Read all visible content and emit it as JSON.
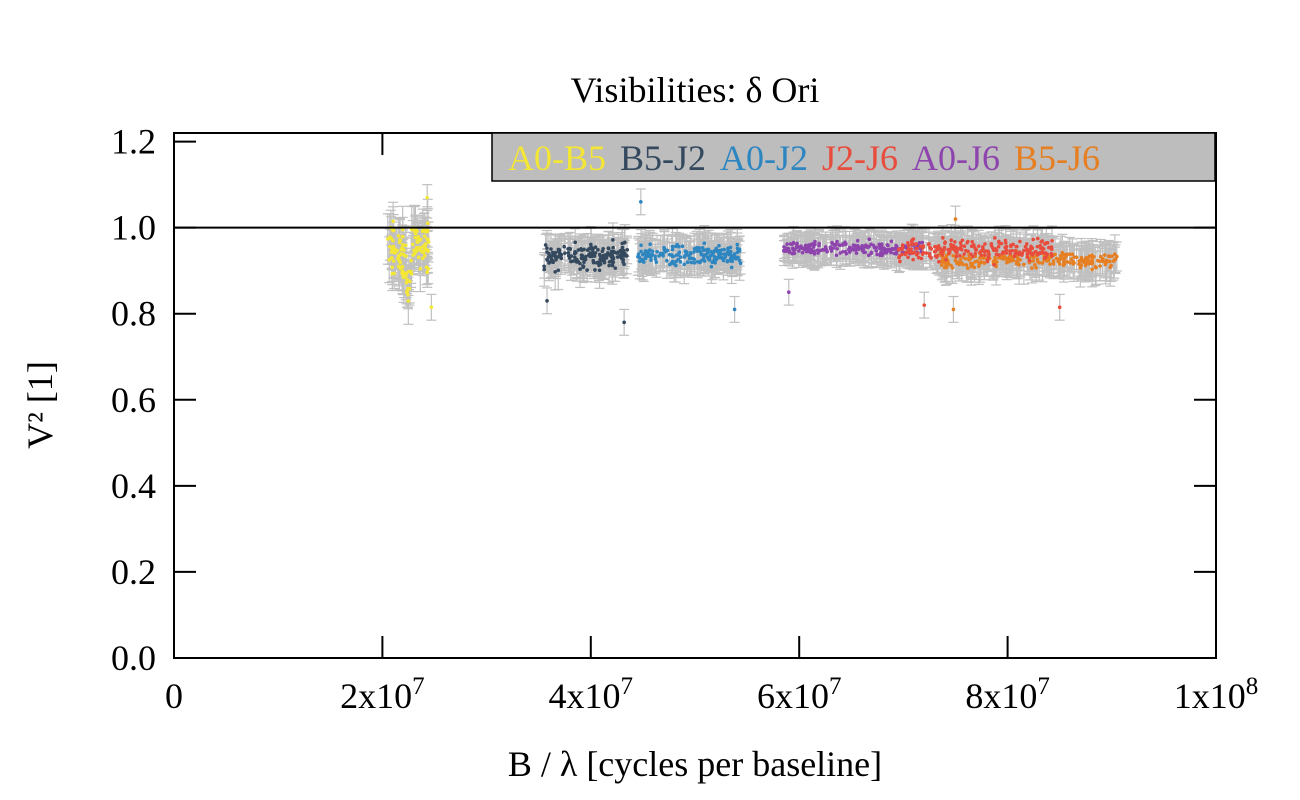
{
  "chart_data": {
    "type": "scatter",
    "title": "Visibilities: δ Ori",
    "xlabel": "B / λ [cycles per baseline]",
    "ylabel": "V² [1]",
    "xlim": [
      0,
      100000000
    ],
    "ylim": [
      0.0,
      1.22
    ],
    "reference_line_y": 1.0,
    "grid": false,
    "legend_position": "top-right",
    "x_ticks": [
      {
        "value": 0,
        "label": "0"
      },
      {
        "value": 20000000,
        "mantissa": "2x10",
        "exp": "7"
      },
      {
        "value": 40000000,
        "mantissa": "4x10",
        "exp": "7"
      },
      {
        "value": 60000000,
        "mantissa": "6x10",
        "exp": "7"
      },
      {
        "value": 80000000,
        "mantissa": "8x10",
        "exp": "7"
      },
      {
        "value": 100000000,
        "mantissa": "1x10",
        "exp": "8"
      }
    ],
    "y_ticks": [
      {
        "value": 0.0,
        "label": "0.0"
      },
      {
        "value": 0.2,
        "label": "0.2"
      },
      {
        "value": 0.4,
        "label": "0.4"
      },
      {
        "value": 0.6,
        "label": "0.6"
      },
      {
        "value": 0.8,
        "label": "0.8"
      },
      {
        "value": 1.0,
        "label": "1.0"
      },
      {
        "value": 1.2,
        "label": "1.2"
      }
    ],
    "series": [
      {
        "name": "A0-B5",
        "color": "#f4e635",
        "x_range": [
          20500000,
          24500000
        ],
        "mean": 0.94,
        "spread": 0.05,
        "err": 0.045,
        "count": 120,
        "segments": [
          [
            20500000,
            22300000,
            0.94
          ],
          [
            22300000,
            22800000,
            0.88
          ],
          [
            22800000,
            24500000,
            0.96
          ]
        ]
      },
      {
        "name": "B5-J2",
        "color": "#34495e",
        "x_range": [
          35500000,
          43500000
        ],
        "mean": 0.935,
        "spread": 0.025,
        "err": 0.035,
        "count": 170,
        "segments": [
          [
            35500000,
            43500000,
            0.935
          ]
        ]
      },
      {
        "name": "A0-J2",
        "color": "#2e86c1",
        "x_range": [
          44500000,
          54500000
        ],
        "mean": 0.935,
        "spread": 0.02,
        "err": 0.035,
        "count": 180,
        "segments": [
          [
            44500000,
            54500000,
            0.935
          ]
        ]
      },
      {
        "name": "J2-J6",
        "color": "#e74c3c",
        "x_range": [
          69500000,
          84500000
        ],
        "mean": 0.95,
        "spread": 0.02,
        "err": 0.03,
        "count": 230,
        "segments": [
          [
            69500000,
            84500000,
            0.95
          ]
        ]
      },
      {
        "name": "A0-J6",
        "color": "#8e44ad",
        "x_range": [
          58500000,
          72000000
        ],
        "mean": 0.952,
        "spread": 0.012,
        "err": 0.03,
        "count": 200,
        "segments": [
          [
            58500000,
            72000000,
            0.952
          ]
        ]
      },
      {
        "name": "B5-J6",
        "color": "#e67e22",
        "x_range": [
          73500000,
          90500000
        ],
        "mean": 0.925,
        "spread": 0.015,
        "err": 0.035,
        "count": 230,
        "segments": [
          [
            73500000,
            90500000,
            0.925
          ]
        ]
      }
    ],
    "outliers": [
      {
        "series": "B5-J2",
        "x": 43200000,
        "y": 0.78
      },
      {
        "series": "A0-J2",
        "x": 44800000,
        "y": 1.06
      },
      {
        "series": "A0-J2",
        "x": 53800000,
        "y": 0.81
      },
      {
        "series": "B5-J2",
        "x": 35800000,
        "y": 0.83
      },
      {
        "series": "J2-J6",
        "x": 72000000,
        "y": 0.82
      },
      {
        "series": "J2-J6",
        "x": 85000000,
        "y": 0.815
      },
      {
        "series": "A0-J6",
        "x": 59000000,
        "y": 0.85
      },
      {
        "series": "A0-B5",
        "x": 24700000,
        "y": 0.815
      },
      {
        "series": "A0-B5",
        "x": 24300000,
        "y": 1.07
      },
      {
        "series": "B5-J6",
        "x": 75000000,
        "y": 1.02
      },
      {
        "series": "B5-J6",
        "x": 74800000,
        "y": 0.81
      }
    ]
  }
}
